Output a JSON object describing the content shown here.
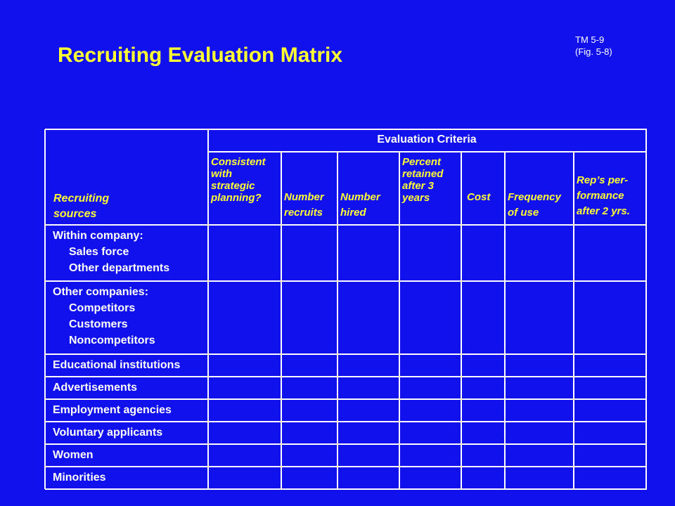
{
  "title": "Recruiting Evaluation Matrix",
  "ref": [
    "TM 5-9",
    "(Fig. 5-8)"
  ],
  "table": {
    "group_header": "Evaluation Criteria",
    "row_header": [
      "Recruiting",
      "sources"
    ],
    "columns": [
      [
        "Consistent",
        "with",
        "strategic",
        "planning?"
      ],
      [
        "Number",
        "recruits"
      ],
      [
        "Number",
        "hired"
      ],
      [
        "Percent",
        "retained",
        "after 3",
        "years"
      ],
      [
        "Cost"
      ],
      [
        "Frequency",
        "of use"
      ],
      [
        "Rep’s per-",
        "formance",
        "after 2 yrs."
      ]
    ],
    "rows": [
      {
        "label": "Within company:",
        "subs": [
          "Sales force",
          "Other departments"
        ]
      },
      {
        "label": "Other companies:",
        "subs": [
          "Competitors",
          "Customers",
          "Noncompetitors"
        ]
      },
      {
        "label": "Educational institutions",
        "subs": []
      },
      {
        "label": "Advertisements",
        "subs": []
      },
      {
        "label": "Employment agencies",
        "subs": []
      },
      {
        "label": "Voluntary applicants",
        "subs": []
      },
      {
        "label": "Women",
        "subs": []
      },
      {
        "label": "Minorities",
        "subs": []
      }
    ]
  }
}
